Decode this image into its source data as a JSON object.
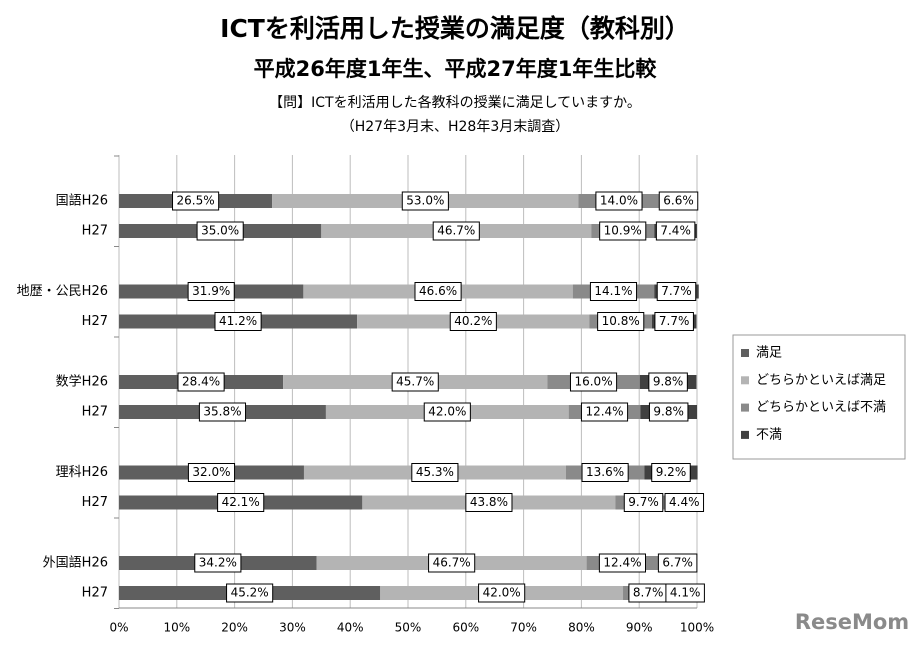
{
  "chart_data": {
    "type": "stacked-bar-horizontal",
    "title": "ICTを利活用した授業の満足度（教科別）",
    "subtitle": "平成26年度1年生、平成27年度1年生比較",
    "question": "【問】ICTを利活用した各教科の授業に満足していますか。",
    "note": "（H27年3月末、H28年3月末調査）",
    "watermark": "ReseMom",
    "categories": [
      "国語H26",
      "H27",
      "地歴・公民H26",
      "H27",
      "数学H26",
      "H27",
      "理科H26",
      "H27",
      "外国語H26",
      "H27"
    ],
    "series": [
      {
        "name": "満足",
        "color": "#5f5f5f",
        "values": [
          26.5,
          35.0,
          31.9,
          41.2,
          28.4,
          35.8,
          32.0,
          42.1,
          34.2,
          45.2
        ],
        "value_labels": [
          "26.5%",
          "35.0%",
          "31.9%",
          "41.2%",
          "28.4%",
          "35.8%",
          "32.0%",
          "42.1%",
          "34.2%",
          "45.2%"
        ]
      },
      {
        "name": "どちらかといえば満足",
        "color": "#b4b4b4",
        "values": [
          53.0,
          46.7,
          46.6,
          40.2,
          45.7,
          42.0,
          45.3,
          43.8,
          46.7,
          42.0
        ],
        "value_labels": [
          "53.0%",
          "46.7%",
          "46.6%",
          "40.2%",
          "45.7%",
          "42.0%",
          "45.3%",
          "43.8%",
          "46.7%",
          "42.0%"
        ]
      },
      {
        "name": "どちらかといえば不満",
        "color": "#8a8a8a",
        "values": [
          14.0,
          10.9,
          14.1,
          10.8,
          16.0,
          12.4,
          13.6,
          9.7,
          12.4,
          8.7
        ],
        "value_labels": [
          "14.0%",
          "10.9%",
          "14.1%",
          "10.8%",
          "16.0%",
          "12.4%",
          "13.6%",
          "9.7%",
          "12.4%",
          "8.7%"
        ]
      },
      {
        "name": "不満",
        "color": "#404040",
        "values": [
          6.6,
          7.4,
          7.7,
          7.7,
          9.8,
          9.8,
          9.2,
          4.4,
          6.7,
          4.1
        ],
        "value_labels": [
          "6.6%",
          "7.4%",
          "7.7%",
          "7.7%",
          "9.8%",
          "9.8%",
          "9.2%",
          "4.4%",
          "6.7%",
          "4.1%"
        ]
      }
    ],
    "xlim": [
      0,
      100
    ],
    "xticks": [
      {
        "value": 0,
        "label": "0%"
      },
      {
        "value": 10,
        "label": "10%"
      },
      {
        "value": 20,
        "label": "20%"
      },
      {
        "value": 30,
        "label": "30%"
      },
      {
        "value": 40,
        "label": "40%"
      },
      {
        "value": 50,
        "label": "50%"
      },
      {
        "value": 60,
        "label": "60%"
      },
      {
        "value": 70,
        "label": "70%"
      },
      {
        "value": 80,
        "label": "80%"
      },
      {
        "value": 90,
        "label": "90%"
      },
      {
        "value": 100,
        "label": "100%"
      }
    ],
    "grid": true,
    "legend": "right"
  }
}
